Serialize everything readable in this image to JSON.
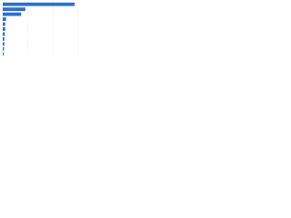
{
  "chart_data": {
    "type": "bar",
    "orientation": "horizontal",
    "categories": [
      null,
      null,
      null,
      null,
      null,
      null,
      null,
      null,
      null,
      null,
      null
    ],
    "values": [
      86,
      27,
      22,
      4,
      3,
      3,
      2.5,
      2,
      2,
      1.5,
      1
    ],
    "color": "#2a6fd6",
    "xlim": [
      0,
      100
    ],
    "xticks": [
      0,
      30,
      60,
      90
    ],
    "grid": true
  }
}
